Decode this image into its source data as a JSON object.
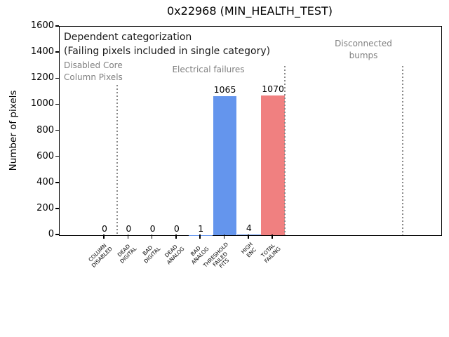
{
  "title": "0x22968 (MIN_HEALTH_TEST)",
  "annotations": {
    "dependent_line1": "Dependent categorization",
    "dependent_line2": "(Failing pixels included in single category)",
    "region_disabled": "Disabled Core\nColumn Pixels",
    "region_electrical": "Electrical failures",
    "region_bumps": "Disconnected\nbumps"
  },
  "colors": {
    "bar_blue": "#6495ED",
    "bar_red": "#F08080",
    "annotation_gray": "#808080",
    "separator_gray": "#8a8a8a"
  },
  "chart_data": {
    "type": "bar",
    "title": "0x22968 (MIN_HEALTH_TEST)",
    "xlabel": "",
    "ylabel": "Number of pixels",
    "ylim": [
      0,
      1600
    ],
    "yticks": [
      0,
      200,
      400,
      600,
      800,
      1000,
      1200,
      1400,
      1600
    ],
    "grid": false,
    "legend": null,
    "categories": [
      "COLUMN\nDISABLED",
      "DEAD\nDIGITAL",
      "BAD\nDIGITAL",
      "DEAD\nANALOG",
      "BAD\nANALOG",
      "THRESHOLD\nFAILED\nFITS",
      "HIGH\nENC",
      "TOTAL\nFAILING"
    ],
    "values": [
      0,
      0,
      0,
      0,
      1,
      1065,
      4,
      1070
    ],
    "value_labels": [
      "0",
      "0",
      "0",
      "0",
      "1",
      "1065",
      "4",
      "1070"
    ],
    "bar_colors": [
      "#6495ED",
      "#6495ED",
      "#6495ED",
      "#6495ED",
      "#6495ED",
      "#6495ED",
      "#6495ED",
      "#F08080"
    ],
    "region_annotations": [
      "Disabled Core Column Pixels",
      "Electrical failures",
      "Disconnected bumps"
    ],
    "note": "Dependent categorization (Failing pixels included in single category)"
  }
}
